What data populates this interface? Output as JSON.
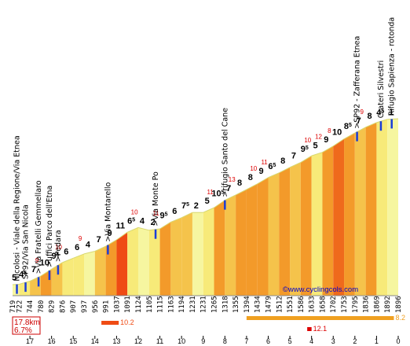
{
  "site": "©www.cyclingcols.com",
  "summary": {
    "distance": "17.8km",
    "avg_grade": "6.7%"
  },
  "chart_data": {
    "type": "area",
    "xlabel": "",
    "ylabel": "",
    "xlim": [
      17.8,
      0
    ],
    "ylim": [
      719,
      1896
    ],
    "grid": false,
    "start_elevation": "719",
    "segments": [
      {
        "km_end": 17.5,
        "elev": 722,
        "grade": "5",
        "color": "#f6f6a0"
      },
      {
        "km_end": 17.0,
        "elev": 744,
        "grade": "4",
        "sup": "5",
        "color": "#f7ea79"
      },
      {
        "km_end": 16.5,
        "elev": 780,
        "grade": "7",
        "max": "9",
        "color": "#f5c34b"
      },
      {
        "km_end": 16.0,
        "elev": 829,
        "grade": "10",
        "color": "#f39a2a"
      },
      {
        "km_end": 15.5,
        "elev": 876,
        "grade": "9",
        "sup": "5",
        "max": "10",
        "color": "#f5c34b"
      },
      {
        "km_end": 15.0,
        "elev": 907,
        "grade": "6",
        "color": "#f7ea79"
      },
      {
        "km_end": 14.5,
        "elev": 937,
        "grade": "6",
        "max": "9",
        "color": "#f7ea79"
      },
      {
        "km_end": 14.0,
        "elev": 956,
        "grade": "4",
        "color": "#f6f6a0"
      },
      {
        "km_end": 13.5,
        "elev": 991,
        "grade": "7",
        "color": "#f5c34b"
      },
      {
        "km_end": 13.0,
        "elev": 1037,
        "grade": "9",
        "color": "#f39a2a"
      },
      {
        "km_end": 12.5,
        "elev": 1091,
        "grade": "11",
        "color": "#ef4b14"
      },
      {
        "km_end": 12.0,
        "elev": 1124,
        "grade": "6",
        "sup": "5",
        "max": "10",
        "color": "#f7ea79"
      },
      {
        "km_end": 11.5,
        "elev": 1105,
        "grade": "4",
        "color": "#f6f6a0"
      },
      {
        "km_end": 11.0,
        "elev": 1115,
        "grade": "2",
        "max": "11",
        "color": "#f7ea79"
      },
      {
        "km_end": 10.5,
        "elev": 1163,
        "grade": "9",
        "sup": "5",
        "color": "#f39a2a"
      },
      {
        "km_end": 10.0,
        "elev": 1194,
        "grade": "6",
        "color": "#f5c34b"
      },
      {
        "km_end": 9.5,
        "elev": 1231,
        "grade": "7",
        "sup": "5",
        "color": "#f5c34b"
      },
      {
        "km_end": 9.0,
        "elev": 1231,
        "grade": "2",
        "color": "#f6f6a0"
      },
      {
        "km_end": 8.5,
        "elev": 1265,
        "grade": "5",
        "max": "11",
        "color": "#f7ea79"
      },
      {
        "km_end": 8.0,
        "elev": 1318,
        "grade": "10",
        "sup": "5",
        "color": "#f39a2a"
      },
      {
        "km_end": 7.5,
        "elev": 1355,
        "grade": "7",
        "max": "13",
        "color": "#f5c34b"
      },
      {
        "km_end": 7.0,
        "elev": 1394,
        "grade": "8",
        "color": "#f39a2a"
      },
      {
        "km_end": 6.5,
        "elev": 1434,
        "grade": "8",
        "max": "10",
        "color": "#f39a2a"
      },
      {
        "km_end": 6.0,
        "elev": 1479,
        "grade": "9",
        "max": "11",
        "color": "#f39a2a"
      },
      {
        "km_end": 5.5,
        "elev": 1512,
        "grade": "6",
        "sup": "5",
        "color": "#f5c34b"
      },
      {
        "km_end": 5.0,
        "elev": 1551,
        "grade": "8",
        "color": "#f39a2a"
      },
      {
        "km_end": 4.5,
        "elev": 1586,
        "grade": "7",
        "color": "#f5c34b"
      },
      {
        "km_end": 4.0,
        "elev": 1633,
        "grade": "9",
        "sup": "5",
        "max": "10",
        "color": "#f39a2a"
      },
      {
        "km_end": 3.5,
        "elev": 1658,
        "grade": "5",
        "max": "12",
        "color": "#f7ea79"
      },
      {
        "km_end": 3.0,
        "elev": 1702,
        "grade": "9",
        "max": "8",
        "color": "#f39a2a"
      },
      {
        "km_end": 2.5,
        "elev": 1753,
        "grade": "10",
        "color": "#ef6a1c"
      },
      {
        "km_end": 2.0,
        "elev": 1795,
        "grade": "8",
        "sup": "5",
        "color": "#f39a2a"
      },
      {
        "km_end": 1.5,
        "elev": 1836,
        "grade": "7",
        "max": "9",
        "color": "#f5c34b"
      },
      {
        "km_end": 1.0,
        "elev": 1869,
        "grade": "8",
        "color": "#f39a2a"
      },
      {
        "km_end": 0.5,
        "elev": 1892,
        "grade": "4",
        "sup": "5",
        "color": "#f7ea79"
      },
      {
        "km_end": 0.0,
        "elev": 1896,
        "grade": "1",
        "color": "#f6f6a0"
      }
    ],
    "annotations": [
      {
        "km": 17.6,
        "text": "Nicolosi - Viale della Regione/Via Etnea"
      },
      {
        "km": 17.2,
        "text": "SP92/Via San Nicola"
      },
      {
        "km": 16.6,
        "text": ">Via Fratelli Gemmellaro"
      },
      {
        "km": 16.1,
        "text": ">uffici Parco dell'Etna"
      },
      {
        "km": 15.7,
        "text": ">Pedara"
      },
      {
        "km": 13.4,
        "text": ">Via Montarello"
      },
      {
        "km": 11.2,
        "text": ">Via Monte Po"
      },
      {
        "km": 8.0,
        "text": ">rifugio Santo del Cane"
      },
      {
        "km": 1.9,
        "text": ">SP92 - Zafferana Etnea"
      },
      {
        "km": 0.8,
        "text": "Crateri Silvestri"
      },
      {
        "km": 0.3,
        "text": "Rifugio Sapienza - rotonda"
      }
    ],
    "steep_sections": [
      {
        "km_from": 13.7,
        "km_to": 12.9,
        "grade": "10.2"
      },
      {
        "km_from": 7.0,
        "km_to": 0.2,
        "grade": "8.2"
      },
      {
        "km_from": 4.2,
        "km_to": 4.0,
        "grade": "12.1"
      }
    ],
    "km_ticks": [
      "17",
      "16",
      "15",
      "14",
      "13",
      "12",
      "11",
      "10",
      "9",
      "8",
      "7",
      "6",
      "5",
      "4",
      "3",
      "2",
      "1",
      "0"
    ]
  }
}
